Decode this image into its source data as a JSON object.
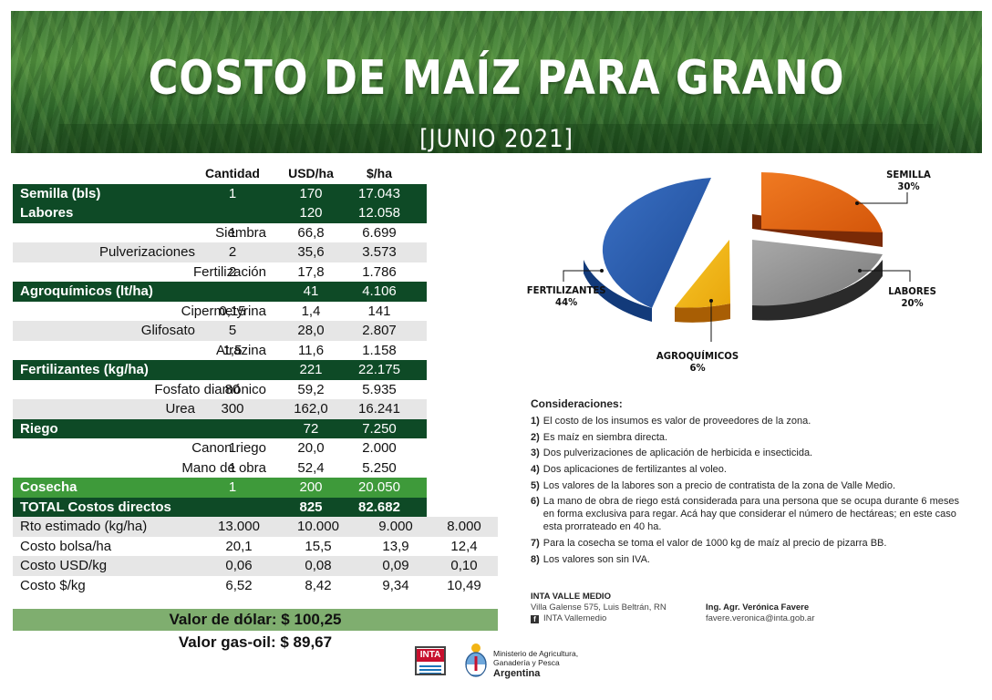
{
  "header": {
    "title": "COSTO DE MAÍZ PARA GRANO",
    "date": "[JUNIO 2021]"
  },
  "table": {
    "headers": [
      "Cantidad",
      "USD/ha",
      "$/ha"
    ],
    "rows": [
      {
        "label": "Semilla (bls)",
        "style": "dark",
        "qty": "1",
        "usd": "170",
        "ars": "17.043"
      },
      {
        "label": "Labores",
        "style": "dark",
        "qty": "",
        "usd": "120",
        "ars": "12.058"
      },
      {
        "label": "Siembra",
        "style": "sub",
        "qty": "1",
        "usd": "66,8",
        "ars": "6.699"
      },
      {
        "label": "Pulverizaciones",
        "style": "sub-shade",
        "qty": "2",
        "usd": "35,6",
        "ars": "3.573"
      },
      {
        "label": "Fertilización",
        "style": "sub",
        "qty": "2",
        "usd": "17,8",
        "ars": "1.786"
      },
      {
        "label": "Agroquímicos (lt/ha)",
        "style": "dark",
        "qty": "",
        "usd": "41",
        "ars": "4.106"
      },
      {
        "label": "Cipermetyrina",
        "style": "sub",
        "qty": "0,15",
        "usd": "1,4",
        "ars": "141"
      },
      {
        "label": "Glifosato",
        "style": "sub-shade",
        "qty": "5",
        "usd": "28,0",
        "ars": "2.807"
      },
      {
        "label": "Atrazina",
        "style": "sub",
        "qty": "1,5",
        "usd": "11,6",
        "ars": "1.158"
      },
      {
        "label": "Fertilizantes (kg/ha)",
        "style": "dark",
        "qty": "",
        "usd": "221",
        "ars": "22.175"
      },
      {
        "label": "Fosfato diamónico",
        "style": "sub",
        "qty": "80",
        "usd": "59,2",
        "ars": "5.935"
      },
      {
        "label": "Urea",
        "style": "sub-shade",
        "qty": "300",
        "usd": "162,0",
        "ars": "16.241"
      },
      {
        "label": "Riego",
        "style": "dark",
        "qty": "",
        "usd": "72",
        "ars": "7.250"
      },
      {
        "label": "Canon riego",
        "style": "sub",
        "qty": "1",
        "usd": "20,0",
        "ars": "2.000"
      },
      {
        "label": "Mano de obra",
        "style": "sub",
        "qty": "1",
        "usd": "52,4",
        "ars": "5.250"
      },
      {
        "label": "Cosecha",
        "style": "bright",
        "qty": "1",
        "usd": "200",
        "ars": "20.050"
      },
      {
        "label": "TOTAL Costos directos",
        "style": "total",
        "qty": "",
        "usd": "825",
        "ars": "82.682"
      }
    ],
    "summary": [
      {
        "label": "Rto estimado (kg/ha)",
        "values": [
          "13.000",
          "10.000",
          "9.000",
          "8.000"
        ]
      },
      {
        "label": "Costo bolsa/ha",
        "values": [
          "20,1",
          "15,5",
          "13,9",
          "12,4"
        ]
      },
      {
        "label": "Costo USD/kg",
        "values": [
          "0,06",
          "0,08",
          "0,09",
          "0,10"
        ]
      },
      {
        "label": "Costo $/kg",
        "values": [
          "6,52",
          "8,42",
          "9,34",
          "10,49"
        ]
      }
    ]
  },
  "dolar": "Valor de dólar: $ 100,25",
  "gasoil": "Valor gas-oil: $ 89,67",
  "pie": {
    "slices": [
      {
        "name": "SEMILLA",
        "pct": "30%",
        "value": 30,
        "color": "#e8650f"
      },
      {
        "name": "LABORES",
        "pct": "20%",
        "value": 20,
        "color": "#8c8c8c"
      },
      {
        "name": "AGROQUÍMICOS",
        "pct": "6%",
        "value": 6,
        "color": "#f2b414"
      },
      {
        "name": "FERTILIZANTES",
        "pct": "44%",
        "value": 44,
        "color": "#2457a8"
      }
    ]
  },
  "considerations": {
    "title": "Consideraciones:",
    "items": [
      {
        "n": "1)",
        "text": "El costo de los insumos es valor de proveedores de la zona."
      },
      {
        "n": "2)",
        "text": "Es maíz en siembra directa."
      },
      {
        "n": "3)",
        "text": "Dos pulverizaciones de aplicación de herbicida e insecticida."
      },
      {
        "n": "4)",
        "text": "Dos aplicaciones de fertilizantes al voleo."
      },
      {
        "n": "5)",
        "text": "Los valores de la labores son a precio de contratista de la zona de Valle Medio."
      },
      {
        "n": "6)",
        "text": "La mano de obra de riego está considerada para una persona que se ocupa durante 6 meses en forma exclusiva para regar. Acá hay que considerar el número de hectáreas; en este caso esta prorrateado en 40 ha."
      },
      {
        "n": "7)",
        "text": "Para la cosecha se toma el valor de 1000 kg de maíz al precio de pizarra BB."
      },
      {
        "n": "8)",
        "text": "Los valores son sin IVA."
      }
    ]
  },
  "footer": {
    "org": "INTA VALLE MEDIO",
    "address": "Villa Galense 575, Luis Beltrán, RN",
    "social": "INTA Vallemedio",
    "name": "Ing. Agr. Verónica Favere",
    "email": "favere.veronica@inta.gob.ar",
    "inta_logo": "INTA",
    "ministry": "Ministerio de Agricultura,",
    "ministry2": "Ganadería y Pesca",
    "country": "Argentina"
  }
}
